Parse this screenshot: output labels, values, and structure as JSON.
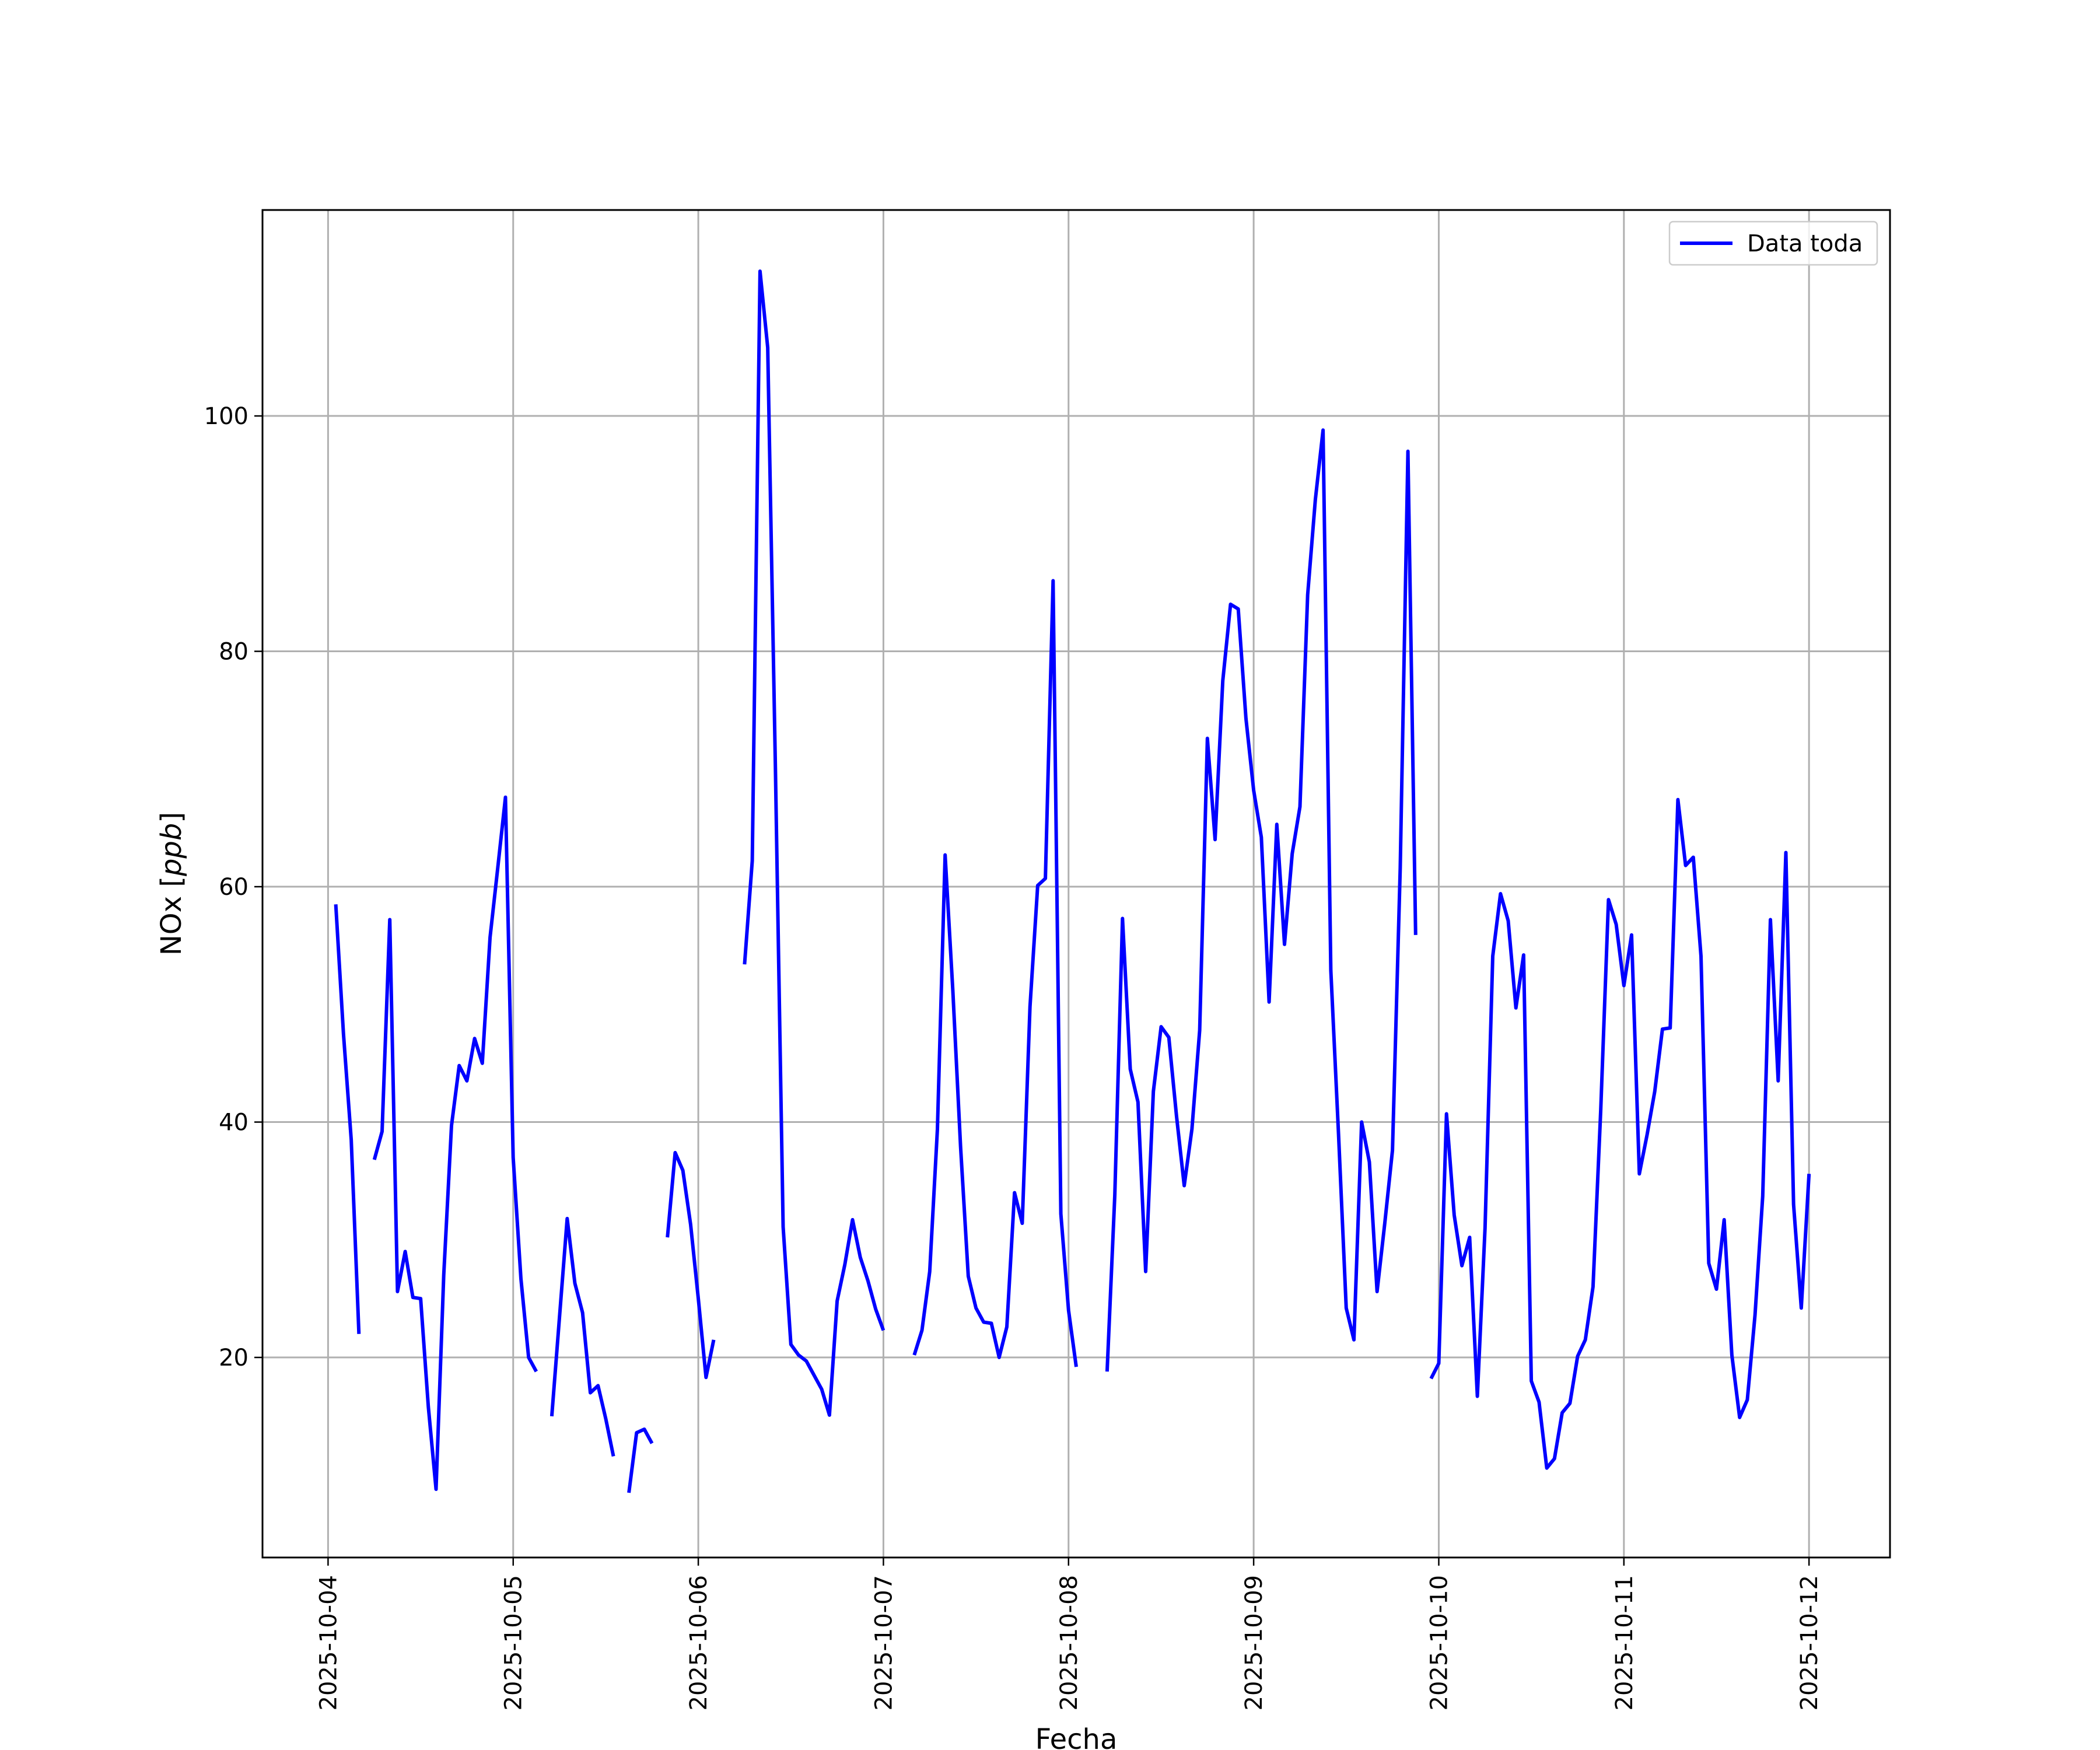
{
  "chart_data": {
    "type": "line",
    "xlabel": "Fecha",
    "ylabel": "NOx [ppb]",
    "ylabel_text": "NOx [",
    "ylabel_unit": "ppb",
    "ylabel_close": "]",
    "xlim": [
      "2025-10-03T15:30",
      "2025-10-12T10:30"
    ],
    "ylim": [
      3,
      117.5
    ],
    "grid": true,
    "legend_position": "top-right",
    "colors": {
      "series": "#0000ff",
      "grid": "#b0b0b0",
      "axes": "#000000"
    },
    "x_ticks": [
      "2025-10-04",
      "2025-10-05",
      "2025-10-06",
      "2025-10-07",
      "2025-10-08",
      "2025-10-09",
      "2025-10-10",
      "2025-10-11",
      "2025-10-12"
    ],
    "y_ticks": [
      20,
      40,
      60,
      80,
      100
    ],
    "series": [
      {
        "name": "Data toda",
        "color": "#0000ff",
        "points": [
          [
            "2025-10-04T01:00",
            58.5
          ],
          [
            "2025-10-04T02:00",
            47.5
          ],
          [
            "2025-10-04T03:00",
            38.5
          ],
          [
            "2025-10-04T04:00",
            22.0
          ],
          [
            "2025-10-04T05:00",
            null
          ],
          [
            "2025-10-04T06:00",
            36.8
          ],
          [
            "2025-10-04T07:00",
            39.2
          ],
          [
            "2025-10-04T08:00",
            57.2
          ],
          [
            "2025-10-04T09:00",
            25.6
          ],
          [
            "2025-10-04T10:00",
            29.0
          ],
          [
            "2025-10-04T11:00",
            25.1
          ],
          [
            "2025-10-04T12:00",
            25.0
          ],
          [
            "2025-10-04T13:00",
            15.8
          ],
          [
            "2025-10-04T14:00",
            8.8
          ],
          [
            "2025-10-04T15:00",
            27.0
          ],
          [
            "2025-10-04T16:00",
            39.7
          ],
          [
            "2025-10-04T17:00",
            44.8
          ],
          [
            "2025-10-04T18:00",
            43.5
          ],
          [
            "2025-10-04T19:00",
            47.1
          ],
          [
            "2025-10-04T20:00",
            45.0
          ],
          [
            "2025-10-04T21:00",
            55.7
          ],
          [
            "2025-10-04T22:00",
            61.6
          ],
          [
            "2025-10-04T23:00",
            67.6
          ],
          [
            "2025-10-05T00:00",
            37.0
          ],
          [
            "2025-10-05T01:00",
            26.7
          ],
          [
            "2025-10-05T02:00",
            20.0
          ],
          [
            "2025-10-05T03:00",
            18.8
          ],
          [
            "2025-10-05T04:00",
            null
          ],
          [
            "2025-10-05T05:00",
            15.0
          ],
          [
            "2025-10-05T06:00",
            23.4
          ],
          [
            "2025-10-05T07:00",
            31.8
          ],
          [
            "2025-10-05T08:00",
            26.3
          ],
          [
            "2025-10-05T09:00",
            23.8
          ],
          [
            "2025-10-05T10:00",
            17.0
          ],
          [
            "2025-10-05T11:00",
            17.6
          ],
          [
            "2025-10-05T12:00",
            14.8
          ],
          [
            "2025-10-05T13:00",
            11.6
          ],
          [
            "2025-10-05T14:00",
            null
          ],
          [
            "2025-10-05T15:00",
            8.5
          ],
          [
            "2025-10-05T16:00",
            13.6
          ],
          [
            "2025-10-05T17:00",
            13.9
          ],
          [
            "2025-10-05T18:00",
            12.7
          ],
          [
            "2025-10-05T19:00",
            null
          ],
          [
            "2025-10-05T20:00",
            30.2
          ],
          [
            "2025-10-05T21:00",
            37.4
          ],
          [
            "2025-10-05T22:00",
            35.9
          ],
          [
            "2025-10-05T23:00",
            31.3
          ],
          [
            "2025-10-06T00:00",
            25.0
          ],
          [
            "2025-10-06T01:00",
            18.3
          ],
          [
            "2025-10-06T02:00",
            21.5
          ],
          [
            "2025-10-06T03:00",
            null
          ],
          [
            "2025-10-06T04:00",
            null
          ],
          [
            "2025-10-06T05:00",
            null
          ],
          [
            "2025-10-06T06:00",
            53.4
          ],
          [
            "2025-10-06T07:00",
            62.2
          ],
          [
            "2025-10-06T08:00",
            112.3
          ],
          [
            "2025-10-06T09:00",
            105.8
          ],
          [
            "2025-10-06T10:00",
            70.0
          ],
          [
            "2025-10-06T11:00",
            31.1
          ],
          [
            "2025-10-06T12:00",
            21.1
          ],
          [
            "2025-10-06T13:00",
            20.2
          ],
          [
            "2025-10-06T14:00",
            19.7
          ],
          [
            "2025-10-06T15:00",
            18.5
          ],
          [
            "2025-10-06T16:00",
            17.3
          ],
          [
            "2025-10-06T17:00",
            15.1
          ],
          [
            "2025-10-06T18:00",
            24.8
          ],
          [
            "2025-10-06T19:00",
            27.9
          ],
          [
            "2025-10-06T20:00",
            31.7
          ],
          [
            "2025-10-06T21:00",
            28.5
          ],
          [
            "2025-10-06T22:00",
            26.5
          ],
          [
            "2025-10-06T23:00",
            24.1
          ],
          [
            "2025-10-07T00:00",
            22.3
          ],
          [
            "2025-10-07T01:00",
            null
          ],
          [
            "2025-10-07T02:00",
            null
          ],
          [
            "2025-10-07T03:00",
            null
          ],
          [
            "2025-10-07T04:00",
            20.2
          ],
          [
            "2025-10-07T05:00",
            22.3
          ],
          [
            "2025-10-07T06:00",
            27.3
          ],
          [
            "2025-10-07T07:00",
            39.4
          ],
          [
            "2025-10-07T08:00",
            62.7
          ],
          [
            "2025-10-07T09:00",
            51.2
          ],
          [
            "2025-10-07T10:00",
            37.9
          ],
          [
            "2025-10-07T11:00",
            26.9
          ],
          [
            "2025-10-07T12:00",
            24.2
          ],
          [
            "2025-10-07T13:00",
            23.0
          ],
          [
            "2025-10-07T14:00",
            22.9
          ],
          [
            "2025-10-07T15:00",
            20.0
          ],
          [
            "2025-10-07T16:00",
            22.6
          ],
          [
            "2025-10-07T17:00",
            34.0
          ],
          [
            "2025-10-07T18:00",
            31.4
          ],
          [
            "2025-10-07T19:00",
            49.8
          ],
          [
            "2025-10-07T20:00",
            60.1
          ],
          [
            "2025-10-07T21:00",
            60.7
          ],
          [
            "2025-10-07T22:00",
            86.0
          ],
          [
            "2025-10-07T23:00",
            32.2
          ],
          [
            "2025-10-08T00:00",
            24.0
          ],
          [
            "2025-10-08T01:00",
            19.2
          ],
          [
            "2025-10-08T02:00",
            null
          ],
          [
            "2025-10-08T03:00",
            null
          ],
          [
            "2025-10-08T04:00",
            null
          ],
          [
            "2025-10-08T05:00",
            18.8
          ],
          [
            "2025-10-08T06:00",
            33.8
          ],
          [
            "2025-10-08T07:00",
            57.3
          ],
          [
            "2025-10-08T08:00",
            44.5
          ],
          [
            "2025-10-08T09:00",
            41.7
          ],
          [
            "2025-10-08T10:00",
            27.3
          ],
          [
            "2025-10-08T11:00",
            42.6
          ],
          [
            "2025-10-08T12:00",
            48.1
          ],
          [
            "2025-10-08T13:00",
            47.2
          ],
          [
            "2025-10-08T14:00",
            40.5
          ],
          [
            "2025-10-08T15:00",
            34.6
          ],
          [
            "2025-10-08T16:00",
            39.4
          ],
          [
            "2025-10-08T17:00",
            47.8
          ],
          [
            "2025-10-08T18:00",
            72.6
          ],
          [
            "2025-10-08T19:00",
            64.0
          ],
          [
            "2025-10-08T20:00",
            77.5
          ],
          [
            "2025-10-08T21:00",
            84.0
          ],
          [
            "2025-10-08T22:00",
            83.6
          ],
          [
            "2025-10-08T23:00",
            74.3
          ],
          [
            "2025-10-09T00:00",
            68.2
          ],
          [
            "2025-10-09T01:00",
            64.2
          ],
          [
            "2025-10-09T02:00",
            50.2
          ],
          [
            "2025-10-09T03:00",
            65.3
          ],
          [
            "2025-10-09T04:00",
            55.1
          ],
          [
            "2025-10-09T05:00",
            62.8
          ],
          [
            "2025-10-09T06:00",
            66.8
          ],
          [
            "2025-10-09T07:00",
            84.8
          ],
          [
            "2025-10-09T08:00",
            92.9
          ],
          [
            "2025-10-09T09:00",
            98.8
          ],
          [
            "2025-10-09T10:00",
            52.9
          ],
          [
            "2025-10-09T11:00",
            39.0
          ],
          [
            "2025-10-09T12:00",
            24.2
          ],
          [
            "2025-10-09T13:00",
            21.5
          ],
          [
            "2025-10-09T14:00",
            40.0
          ],
          [
            "2025-10-09T15:00",
            36.6
          ],
          [
            "2025-10-09T16:00",
            25.6
          ],
          [
            "2025-10-09T17:00",
            31.4
          ],
          [
            "2025-10-09T18:00",
            37.6
          ],
          [
            "2025-10-09T19:00",
            61.6
          ],
          [
            "2025-10-09T20:00",
            97.0
          ],
          [
            "2025-10-09T21:00",
            55.9
          ],
          [
            "2025-10-09T22:00",
            null
          ],
          [
            "2025-10-09T23:00",
            18.2
          ],
          [
            "2025-10-10T00:00",
            19.5
          ],
          [
            "2025-10-10T01:00",
            40.7
          ],
          [
            "2025-10-10T02:00",
            32.1
          ],
          [
            "2025-10-10T03:00",
            27.8
          ],
          [
            "2025-10-10T04:00",
            30.2
          ],
          [
            "2025-10-10T05:00",
            16.7
          ],
          [
            "2025-10-10T06:00",
            31.0
          ],
          [
            "2025-10-10T07:00",
            54.1
          ],
          [
            "2025-10-10T08:00",
            59.4
          ],
          [
            "2025-10-10T09:00",
            57.1
          ],
          [
            "2025-10-10T10:00",
            49.7
          ],
          [
            "2025-10-10T11:00",
            54.2
          ],
          [
            "2025-10-10T12:00",
            18.0
          ],
          [
            "2025-10-10T13:00",
            16.2
          ],
          [
            "2025-10-10T14:00",
            10.6
          ],
          [
            "2025-10-10T15:00",
            11.4
          ],
          [
            "2025-10-10T16:00",
            15.3
          ],
          [
            "2025-10-10T17:00",
            16.1
          ],
          [
            "2025-10-10T18:00",
            20.1
          ],
          [
            "2025-10-10T19:00",
            21.5
          ],
          [
            "2025-10-10T20:00",
            26.0
          ],
          [
            "2025-10-10T21:00",
            41.0
          ],
          [
            "2025-10-10T22:00",
            58.9
          ],
          [
            "2025-10-10T23:00",
            56.8
          ],
          [
            "2025-10-11T00:00",
            51.6
          ],
          [
            "2025-10-11T01:00",
            55.9
          ],
          [
            "2025-10-11T02:00",
            35.6
          ],
          [
            "2025-10-11T03:00",
            38.9
          ],
          [
            "2025-10-11T04:00",
            42.6
          ],
          [
            "2025-10-11T05:00",
            47.9
          ],
          [
            "2025-10-11T06:00",
            48.0
          ],
          [
            "2025-10-11T07:00",
            67.4
          ],
          [
            "2025-10-11T08:00",
            61.8
          ],
          [
            "2025-10-11T09:00",
            62.5
          ],
          [
            "2025-10-11T10:00",
            54.1
          ],
          [
            "2025-10-11T11:00",
            28.0
          ],
          [
            "2025-10-11T12:00",
            25.8
          ],
          [
            "2025-10-11T13:00",
            31.7
          ],
          [
            "2025-10-11T14:00",
            20.2
          ],
          [
            "2025-10-11T15:00",
            14.9
          ],
          [
            "2025-10-11T16:00",
            16.4
          ],
          [
            "2025-10-11T17:00",
            23.6
          ],
          [
            "2025-10-11T18:00",
            33.7
          ],
          [
            "2025-10-11T19:00",
            57.2
          ],
          [
            "2025-10-11T20:00",
            43.5
          ],
          [
            "2025-10-11T21:00",
            62.9
          ],
          [
            "2025-10-11T22:00",
            33.0
          ],
          [
            "2025-10-11T23:00",
            24.2
          ],
          [
            "2025-10-12T00:00",
            35.6
          ]
        ]
      }
    ]
  }
}
